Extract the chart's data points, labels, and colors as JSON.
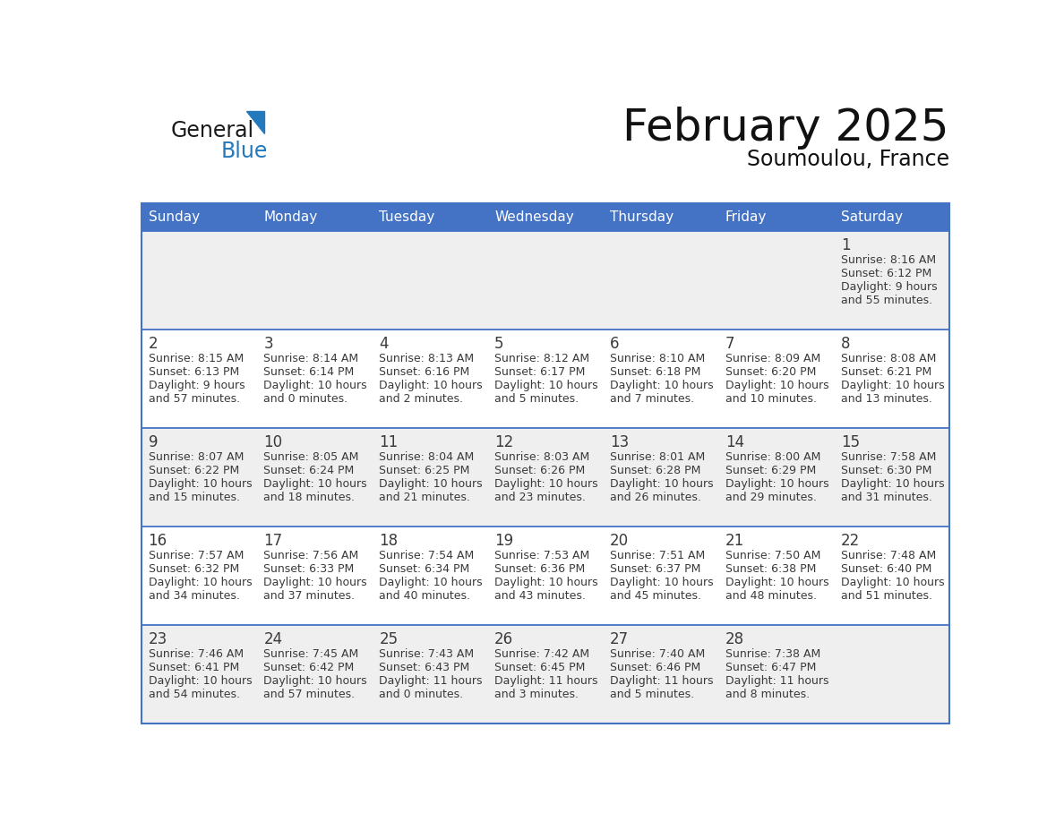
{
  "title": "February 2025",
  "subtitle": "Soumoulou, France",
  "header_bg": "#4472C4",
  "header_text_color": "#FFFFFF",
  "days_of_week": [
    "Sunday",
    "Monday",
    "Tuesday",
    "Wednesday",
    "Thursday",
    "Friday",
    "Saturday"
  ],
  "cell_bg_light": "#EFEFEF",
  "cell_bg_white": "#FFFFFF",
  "text_color": "#3a3a3a",
  "border_color": "#4472C4",
  "calendar": [
    [
      null,
      null,
      null,
      null,
      null,
      null,
      {
        "day": 1,
        "sunrise": "8:16 AM",
        "sunset": "6:12 PM",
        "daylight_line1": "Daylight: 9 hours",
        "daylight_line2": "and 55 minutes."
      }
    ],
    [
      {
        "day": 2,
        "sunrise": "8:15 AM",
        "sunset": "6:13 PM",
        "daylight_line1": "Daylight: 9 hours",
        "daylight_line2": "and 57 minutes."
      },
      {
        "day": 3,
        "sunrise": "8:14 AM",
        "sunset": "6:14 PM",
        "daylight_line1": "Daylight: 10 hours",
        "daylight_line2": "and 0 minutes."
      },
      {
        "day": 4,
        "sunrise": "8:13 AM",
        "sunset": "6:16 PM",
        "daylight_line1": "Daylight: 10 hours",
        "daylight_line2": "and 2 minutes."
      },
      {
        "day": 5,
        "sunrise": "8:12 AM",
        "sunset": "6:17 PM",
        "daylight_line1": "Daylight: 10 hours",
        "daylight_line2": "and 5 minutes."
      },
      {
        "day": 6,
        "sunrise": "8:10 AM",
        "sunset": "6:18 PM",
        "daylight_line1": "Daylight: 10 hours",
        "daylight_line2": "and 7 minutes."
      },
      {
        "day": 7,
        "sunrise": "8:09 AM",
        "sunset": "6:20 PM",
        "daylight_line1": "Daylight: 10 hours",
        "daylight_line2": "and 10 minutes."
      },
      {
        "day": 8,
        "sunrise": "8:08 AM",
        "sunset": "6:21 PM",
        "daylight_line1": "Daylight: 10 hours",
        "daylight_line2": "and 13 minutes."
      }
    ],
    [
      {
        "day": 9,
        "sunrise": "8:07 AM",
        "sunset": "6:22 PM",
        "daylight_line1": "Daylight: 10 hours",
        "daylight_line2": "and 15 minutes."
      },
      {
        "day": 10,
        "sunrise": "8:05 AM",
        "sunset": "6:24 PM",
        "daylight_line1": "Daylight: 10 hours",
        "daylight_line2": "and 18 minutes."
      },
      {
        "day": 11,
        "sunrise": "8:04 AM",
        "sunset": "6:25 PM",
        "daylight_line1": "Daylight: 10 hours",
        "daylight_line2": "and 21 minutes."
      },
      {
        "day": 12,
        "sunrise": "8:03 AM",
        "sunset": "6:26 PM",
        "daylight_line1": "Daylight: 10 hours",
        "daylight_line2": "and 23 minutes."
      },
      {
        "day": 13,
        "sunrise": "8:01 AM",
        "sunset": "6:28 PM",
        "daylight_line1": "Daylight: 10 hours",
        "daylight_line2": "and 26 minutes."
      },
      {
        "day": 14,
        "sunrise": "8:00 AM",
        "sunset": "6:29 PM",
        "daylight_line1": "Daylight: 10 hours",
        "daylight_line2": "and 29 minutes."
      },
      {
        "day": 15,
        "sunrise": "7:58 AM",
        "sunset": "6:30 PM",
        "daylight_line1": "Daylight: 10 hours",
        "daylight_line2": "and 31 minutes."
      }
    ],
    [
      {
        "day": 16,
        "sunrise": "7:57 AM",
        "sunset": "6:32 PM",
        "daylight_line1": "Daylight: 10 hours",
        "daylight_line2": "and 34 minutes."
      },
      {
        "day": 17,
        "sunrise": "7:56 AM",
        "sunset": "6:33 PM",
        "daylight_line1": "Daylight: 10 hours",
        "daylight_line2": "and 37 minutes."
      },
      {
        "day": 18,
        "sunrise": "7:54 AM",
        "sunset": "6:34 PM",
        "daylight_line1": "Daylight: 10 hours",
        "daylight_line2": "and 40 minutes."
      },
      {
        "day": 19,
        "sunrise": "7:53 AM",
        "sunset": "6:36 PM",
        "daylight_line1": "Daylight: 10 hours",
        "daylight_line2": "and 43 minutes."
      },
      {
        "day": 20,
        "sunrise": "7:51 AM",
        "sunset": "6:37 PM",
        "daylight_line1": "Daylight: 10 hours",
        "daylight_line2": "and 45 minutes."
      },
      {
        "day": 21,
        "sunrise": "7:50 AM",
        "sunset": "6:38 PM",
        "daylight_line1": "Daylight: 10 hours",
        "daylight_line2": "and 48 minutes."
      },
      {
        "day": 22,
        "sunrise": "7:48 AM",
        "sunset": "6:40 PM",
        "daylight_line1": "Daylight: 10 hours",
        "daylight_line2": "and 51 minutes."
      }
    ],
    [
      {
        "day": 23,
        "sunrise": "7:46 AM",
        "sunset": "6:41 PM",
        "daylight_line1": "Daylight: 10 hours",
        "daylight_line2": "and 54 minutes."
      },
      {
        "day": 24,
        "sunrise": "7:45 AM",
        "sunset": "6:42 PM",
        "daylight_line1": "Daylight: 10 hours",
        "daylight_line2": "and 57 minutes."
      },
      {
        "day": 25,
        "sunrise": "7:43 AM",
        "sunset": "6:43 PM",
        "daylight_line1": "Daylight: 11 hours",
        "daylight_line2": "and 0 minutes."
      },
      {
        "day": 26,
        "sunrise": "7:42 AM",
        "sunset": "6:45 PM",
        "daylight_line1": "Daylight: 11 hours",
        "daylight_line2": "and 3 minutes."
      },
      {
        "day": 27,
        "sunrise": "7:40 AM",
        "sunset": "6:46 PM",
        "daylight_line1": "Daylight: 11 hours",
        "daylight_line2": "and 5 minutes."
      },
      {
        "day": 28,
        "sunrise": "7:38 AM",
        "sunset": "6:47 PM",
        "daylight_line1": "Daylight: 11 hours",
        "daylight_line2": "and 8 minutes."
      },
      null
    ]
  ],
  "logo_general_color": "#1a1a1a",
  "logo_blue_color": "#2479BD",
  "logo_triangle_color": "#2479BD",
  "title_fontsize": 36,
  "subtitle_fontsize": 17,
  "header_fontsize": 11,
  "day_num_fontsize": 12,
  "cell_text_fontsize": 9
}
